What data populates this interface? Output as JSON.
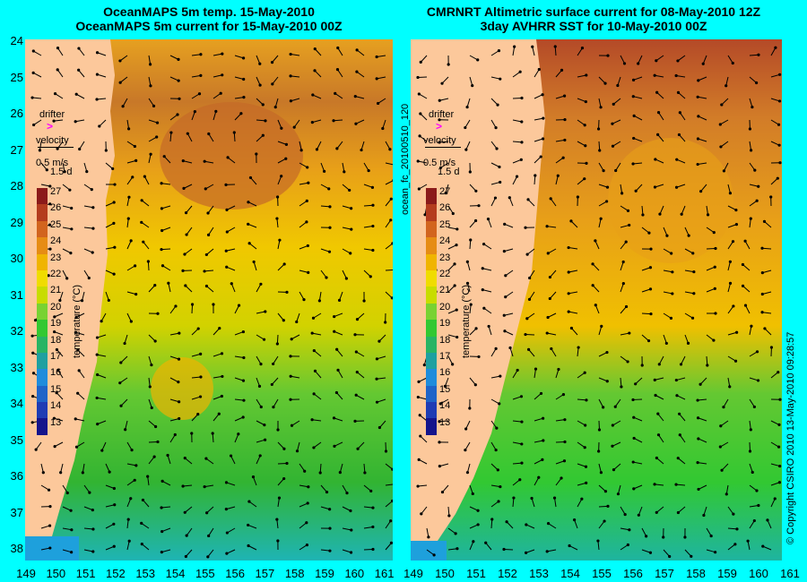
{
  "left_title": {
    "line1": "OceanMAPS 5m temp. 15-May-2010",
    "line2": "OceanMAPS 5m current for 15-May-2010 00Z"
  },
  "right_title": {
    "line1": "CMRNRT Altimetric surface current for 08-May-2010 12Z",
    "line2": "3day AVHRR SST for 10-May-2010 00Z"
  },
  "y_axis_labels": [
    "24",
    "25",
    "26",
    "27",
    "28",
    "29",
    "30",
    "31",
    "32",
    "33",
    "34",
    "35",
    "36",
    "37",
    "38"
  ],
  "x_axis_labels": [
    "149",
    "150",
    "151",
    "152",
    "153",
    "154",
    "155",
    "156",
    "157",
    "158",
    "159",
    "160",
    "161"
  ],
  "legend": {
    "drifter_label": "drifter",
    "velocity_label": "velocity",
    "speed_label": "0.5 m/s",
    "duration_label": "1.5 d",
    "colorbar_ticks": [
      "27",
      "26",
      "25",
      "24",
      "23",
      "22",
      "21",
      "20",
      "19",
      "18",
      "17",
      "16",
      "15",
      "14",
      "13"
    ],
    "colorbar_title": "temperature (°C)"
  },
  "side_labels": {
    "file_id": "ocean_fc_20100510_120",
    "copyright": "© Copyright CSIRO 2010   13-May-2010 09:28:57"
  },
  "colors": {
    "background": "#00ffff",
    "land": "#fcc89b",
    "warm": "#c8641e",
    "mid": "#f0c800",
    "cool": "#32c832",
    "cold": "#1ea0dc",
    "drifter": "#ff00ff"
  }
}
